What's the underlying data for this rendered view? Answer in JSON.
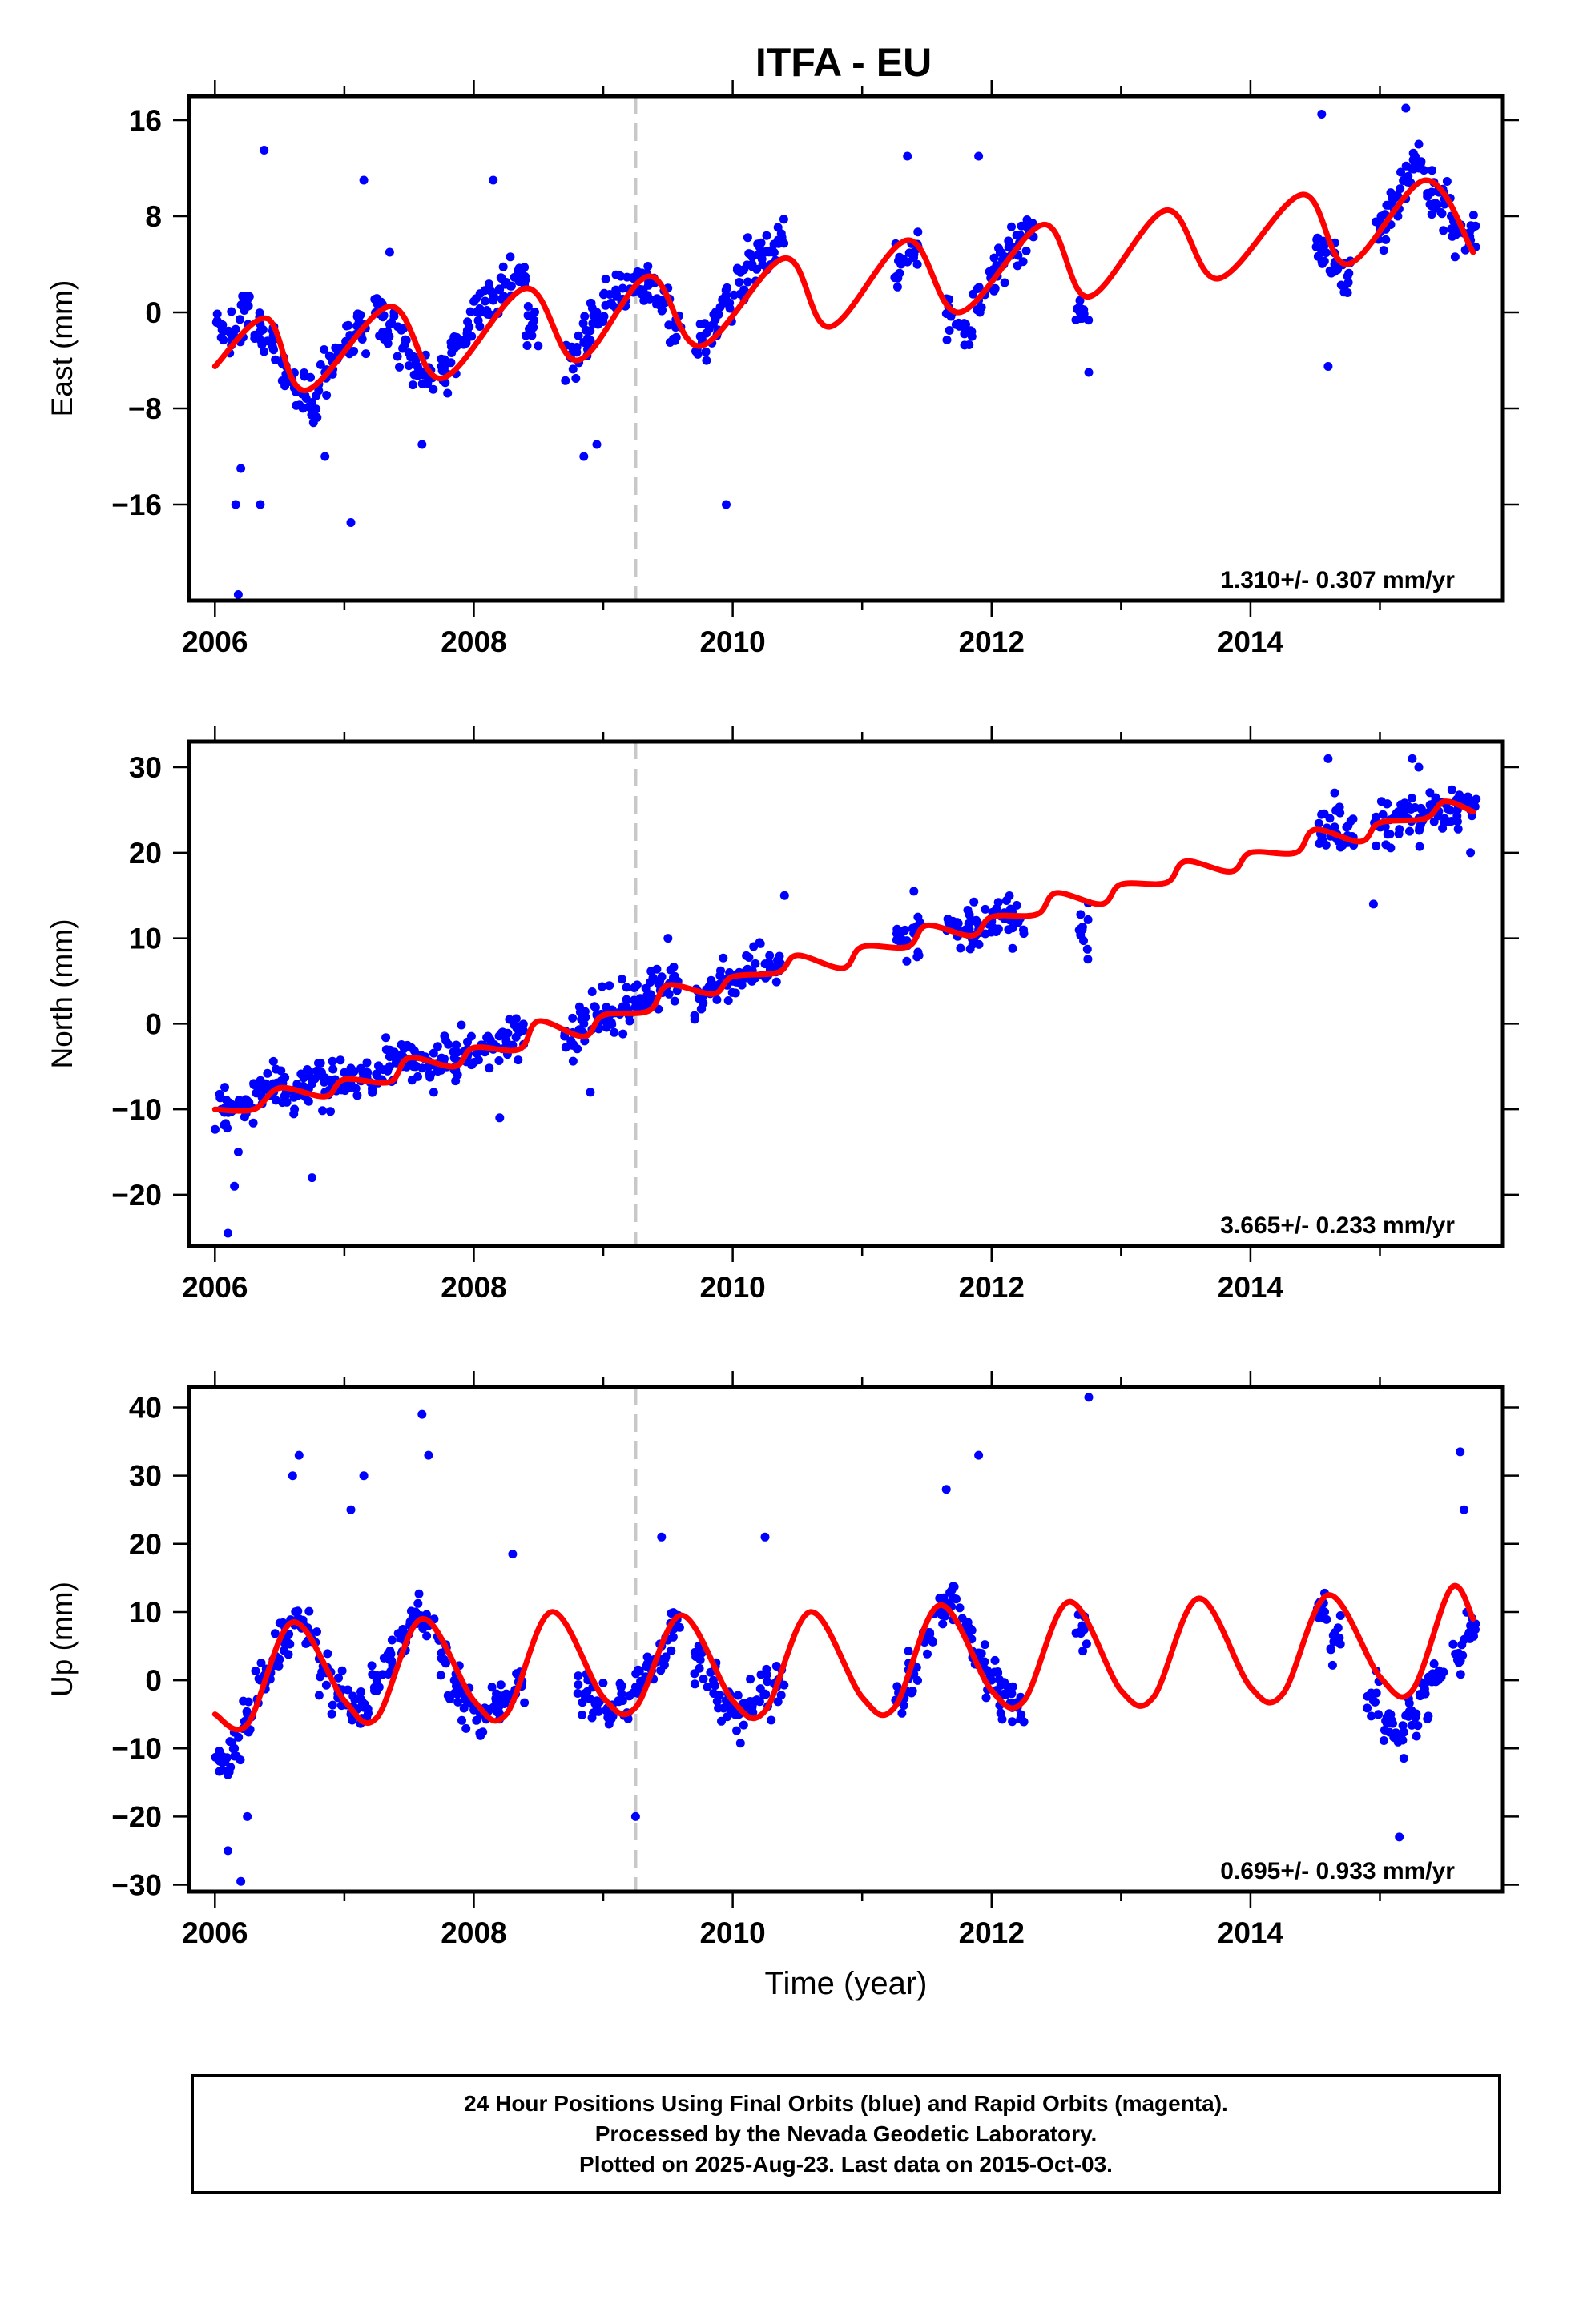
{
  "title": "ITFA - EU",
  "footer": {
    "line1": "24 Hour Positions Using Final Orbits (blue) and Rapid Orbits (magenta).",
    "line2": "Processed by the Nevada Geodetic Laboratory.",
    "line3": "Plotted on 2025-Aug-23. Last data on 2015-Oct-03."
  },
  "colors": {
    "points": "#0000ff",
    "fit": "#ff0000",
    "marker_line": "#c8c8c8"
  },
  "chart_data": [
    {
      "type": "scatter",
      "ylabel": "East (mm)",
      "xlabel": "",
      "xlim": [
        2005.8,
        2015.95
      ],
      "ylim": [
        -24,
        18
      ],
      "yticks": [
        -16,
        -8,
        0,
        8,
        16
      ],
      "xticks": [
        2006,
        2008,
        2010,
        2012,
        2014
      ],
      "grid": false,
      "vertical_marker": 2009.25,
      "rate_text": "1.310+/- 0.307 mm/yr",
      "series": [
        {
          "kind": "points",
          "x": [
            2006.05,
            2006.15,
            2006.25,
            2006.35,
            2006.45,
            2006.55,
            2006.65,
            2006.75,
            2006.85,
            2006.95,
            2007.05,
            2007.15,
            2007.25,
            2007.35,
            2007.45,
            2007.55,
            2007.65,
            2007.75,
            2007.85,
            2007.95,
            2008.05,
            2008.15,
            2008.25,
            2008.35,
            2008.45,
            2008.75,
            2008.85,
            2008.95,
            2009.05,
            2009.15,
            2009.25,
            2009.35,
            2009.45,
            2009.55,
            2009.75,
            2009.85,
            2009.95,
            2010.05,
            2010.15,
            2010.25,
            2010.35,
            2011.3,
            2011.4,
            2011.7,
            2011.8,
            2011.9,
            2012.0,
            2012.1,
            2012.2,
            2012.3,
            2012.7,
            2014.55,
            2014.65,
            2014.75,
            2015.0,
            2015.1,
            2015.2,
            2015.3,
            2015.4,
            2015.5,
            2015.6,
            2015.7
          ],
          "y": [
            -1.0,
            -2.0,
            0.5,
            -1.0,
            -3.0,
            -4.5,
            -6.5,
            -7.5,
            -5.0,
            -3.5,
            -2.0,
            -1.0,
            0.0,
            -1.0,
            -3.0,
            -4.0,
            -5.5,
            -4.5,
            -3.0,
            -1.5,
            0.0,
            1.0,
            2.5,
            3.0,
            -1.0,
            -3.5,
            -2.5,
            0.0,
            1.5,
            2.0,
            3.0,
            2.5,
            1.0,
            -1.0,
            -2.0,
            -1.0,
            1.0,
            2.5,
            4.0,
            5.0,
            6.0,
            4.0,
            5.0,
            0.0,
            -1.0,
            1.0,
            3.0,
            4.5,
            5.5,
            6.5,
            -0.5,
            5.0,
            4.0,
            3.0,
            7.0,
            9.0,
            11.0,
            12.0,
            10.0,
            9.0,
            7.0,
            6.0
          ]
        },
        {
          "kind": "outliers",
          "x": [
            2006.2,
            2006.35,
            2006.38,
            2006.18,
            2006.16,
            2006.85,
            2007.05,
            2007.15,
            2007.35,
            2007.6,
            2008.15,
            2008.85,
            2008.95,
            2009.95,
            2011.35,
            2011.9,
            2012.75,
            2014.55,
            2014.6,
            2015.2,
            2015.3
          ],
          "y": [
            -13,
            -16,
            13.5,
            -23.5,
            -16,
            -12,
            -17.5,
            11,
            5,
            -11,
            11,
            -12,
            -11,
            -16,
            13,
            13,
            -5,
            16.5,
            -4.5,
            17,
            14
          ]
        },
        {
          "kind": "fit",
          "x": [
            2006.0,
            2006.4,
            2006.7,
            2007.35,
            2007.75,
            2008.4,
            2008.8,
            2009.35,
            2009.75,
            2010.4,
            2010.75,
            2011.35,
            2011.75,
            2012.4,
            2012.75,
            2013.35,
            2013.75,
            2014.4,
            2014.75,
            2015.35,
            2015.72
          ],
          "y": [
            -4.5,
            -0.5,
            -6.5,
            0.5,
            -5.5,
            2.0,
            -4.0,
            3.0,
            -2.8,
            4.5,
            -1.2,
            6.0,
            0.0,
            7.3,
            1.3,
            8.5,
            2.8,
            9.8,
            4.0,
            11.0,
            5.0
          ]
        }
      ]
    },
    {
      "type": "scatter",
      "ylabel": "North (mm)",
      "xlabel": "",
      "xlim": [
        2005.8,
        2015.95
      ],
      "ylim": [
        -26,
        33
      ],
      "yticks": [
        -20,
        -10,
        0,
        10,
        20,
        30
      ],
      "xticks": [
        2006,
        2008,
        2010,
        2012,
        2014
      ],
      "grid": false,
      "vertical_marker": 2009.25,
      "rate_text": "3.665+/- 0.233 mm/yr",
      "series": [
        {
          "kind": "points",
          "x": [
            2006.05,
            2006.15,
            2006.25,
            2006.35,
            2006.45,
            2006.55,
            2006.65,
            2006.75,
            2006.85,
            2006.95,
            2007.05,
            2007.15,
            2007.25,
            2007.35,
            2007.45,
            2007.55,
            2007.65,
            2007.75,
            2007.85,
            2007.95,
            2008.05,
            2008.15,
            2008.25,
            2008.35,
            2008.75,
            2008.85,
            2008.95,
            2009.05,
            2009.15,
            2009.25,
            2009.35,
            2009.45,
            2009.55,
            2009.75,
            2009.85,
            2009.95,
            2010.05,
            2010.15,
            2010.25,
            2010.35,
            2011.3,
            2011.4,
            2011.7,
            2011.8,
            2011.9,
            2012.0,
            2012.1,
            2012.2,
            2012.7,
            2014.55,
            2014.65,
            2014.75,
            2015.0,
            2015.1,
            2015.2,
            2015.3,
            2015.4,
            2015.5,
            2015.6,
            2015.7
          ],
          "y": [
            -10,
            -10,
            -9,
            -8,
            -7,
            -8,
            -8,
            -7,
            -8,
            -7,
            -7,
            -6,
            -6,
            -5,
            -4,
            -5,
            -5,
            -4,
            -4,
            -3,
            -3,
            -3,
            -2,
            -1,
            -2,
            0,
            1,
            1,
            2,
            2,
            3,
            4,
            5,
            3,
            4,
            5,
            6,
            6,
            7,
            7,
            10,
            11,
            12,
            11,
            11,
            12,
            13,
            12,
            11,
            22,
            23,
            22,
            23,
            24,
            25,
            24,
            25,
            24,
            25,
            25
          ]
        },
        {
          "kind": "outliers",
          "x": [
            2006.1,
            2006.15,
            2006.18,
            2006.75,
            2008.2,
            2008.9,
            2009.5,
            2010.4,
            2011.4,
            2014.6,
            2014.65,
            2014.95,
            2015.25,
            2015.3,
            2015.7
          ],
          "y": [
            -24.5,
            -19,
            -15,
            -18,
            -11,
            -8,
            10,
            15,
            15.5,
            31,
            27,
            14,
            31,
            30,
            20
          ]
        },
        {
          "kind": "fit",
          "x": [
            2006.0,
            2006.3,
            2006.5,
            2006.85,
            2007.0,
            2007.35,
            2007.5,
            2007.85,
            2008.0,
            2008.35,
            2008.5,
            2008.85,
            2009.0,
            2009.35,
            2009.5,
            2009.85,
            2010.0,
            2010.35,
            2010.5,
            2010.85,
            2011.0,
            2011.35,
            2011.5,
            2011.85,
            2012.0,
            2012.35,
            2012.5,
            2012.85,
            2013.0,
            2013.35,
            2013.5,
            2013.85,
            2014.0,
            2014.35,
            2014.5,
            2014.85,
            2015.0,
            2015.35,
            2015.5,
            2015.72
          ],
          "y": [
            -10,
            -10,
            -7.5,
            -8.5,
            -6.5,
            -6.8,
            -4.0,
            -5.0,
            -2.8,
            -3.0,
            0.3,
            -1.5,
            1.0,
            1.5,
            4.5,
            3.5,
            5.5,
            6.0,
            8.0,
            6.5,
            9.0,
            9.0,
            11.5,
            10.3,
            12.5,
            12.8,
            15.3,
            14.0,
            16.3,
            16.5,
            19.0,
            17.8,
            20.0,
            20.0,
            22.7,
            21.3,
            23.5,
            24.0,
            26.0,
            24.8
          ]
        }
      ]
    },
    {
      "type": "scatter",
      "ylabel": "Up (mm)",
      "xlabel": "Time (year)",
      "xlim": [
        2005.8,
        2015.95
      ],
      "ylim": [
        -31,
        43
      ],
      "yticks": [
        -30,
        -20,
        -10,
        0,
        10,
        20,
        30,
        40
      ],
      "xticks": [
        2006,
        2008,
        2010,
        2012,
        2014
      ],
      "grid": false,
      "vertical_marker": 2009.25,
      "rate_text": "0.695+/- 0.933 mm/yr",
      "series": [
        {
          "kind": "points",
          "x": [
            2006.05,
            2006.15,
            2006.25,
            2006.35,
            2006.45,
            2006.55,
            2006.65,
            2006.75,
            2006.85,
            2006.95,
            2007.05,
            2007.15,
            2007.25,
            2007.35,
            2007.45,
            2007.55,
            2007.65,
            2007.75,
            2007.85,
            2007.95,
            2008.05,
            2008.15,
            2008.25,
            2008.35,
            2008.85,
            2008.95,
            2009.05,
            2009.15,
            2009.25,
            2009.35,
            2009.45,
            2009.55,
            2009.75,
            2009.85,
            2009.95,
            2010.05,
            2010.15,
            2010.25,
            2010.35,
            2011.3,
            2011.4,
            2011.5,
            2011.6,
            2011.7,
            2011.8,
            2011.9,
            2012.0,
            2012.1,
            2012.2,
            2012.7,
            2014.55,
            2014.65,
            2014.95,
            2015.05,
            2015.15,
            2015.25,
            2015.35,
            2015.45,
            2015.6,
            2015.7
          ],
          "y": [
            -12,
            -10,
            -5,
            0,
            3,
            6,
            9,
            6,
            2,
            -2,
            -5,
            -4,
            0,
            3,
            6,
            10,
            8,
            4,
            0,
            -3,
            -5,
            -4,
            -2,
            0,
            -2,
            -4,
            -5,
            -3,
            -1,
            2,
            5,
            8,
            3,
            0,
            -3,
            -5,
            -4,
            -2,
            0,
            -3,
            2,
            6,
            10,
            12,
            8,
            4,
            0,
            -2,
            -4,
            8,
            10,
            6,
            -3,
            -6,
            -8,
            -5,
            -2,
            0,
            3,
            8
          ]
        },
        {
          "kind": "outliers",
          "x": [
            2006.1,
            2006.2,
            2006.25,
            2006.6,
            2006.65,
            2007.05,
            2007.15,
            2007.6,
            2007.65,
            2008.3,
            2009.25,
            2009.45,
            2010.25,
            2011.65,
            2011.9,
            2012.75,
            2015.15,
            2015.62,
            2015.65
          ],
          "y": [
            -25,
            -29.5,
            -20,
            30,
            33,
            25,
            30,
            39,
            33,
            18.5,
            -20,
            21,
            21,
            28,
            33,
            41.5,
            -23,
            33.5,
            25
          ]
        },
        {
          "kind": "fit",
          "x": [
            2006.0,
            2006.25,
            2006.6,
            2007.0,
            2007.25,
            2007.6,
            2008.0,
            2008.25,
            2008.6,
            2009.0,
            2009.25,
            2009.6,
            2010.0,
            2010.25,
            2010.6,
            2011.0,
            2011.25,
            2011.6,
            2012.0,
            2012.25,
            2012.6,
            2013.0,
            2013.25,
            2013.6,
            2014.0,
            2014.25,
            2014.6,
            2015.0,
            2015.25,
            2015.55,
            2015.72
          ],
          "y": [
            -5,
            -6.5,
            8.5,
            -3,
            -5.5,
            9,
            -3,
            -5,
            10,
            -2.5,
            -4,
            9.5,
            -3,
            -4.5,
            10,
            -2.5,
            -4,
            11,
            -1.5,
            -3,
            11.5,
            -1.5,
            -2.5,
            12,
            -1,
            -2,
            12.5,
            0.5,
            -1.5,
            13.5,
            9
          ]
        }
      ]
    }
  ]
}
